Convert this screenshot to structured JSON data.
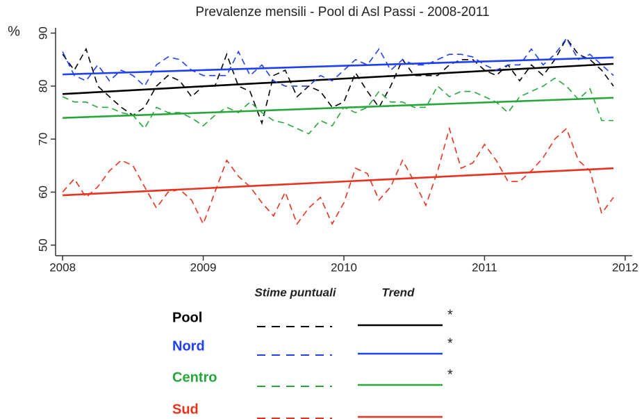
{
  "chart_data": {
    "type": "line",
    "title": "Prevalenze mensili - Pool di Asl Passi - 2008-2011",
    "y_label": "%",
    "legend_headers": [
      "Stime puntuali",
      "Trend"
    ],
    "x": [
      2008,
      2008.083,
      2008.167,
      2008.25,
      2008.333,
      2008.417,
      2008.5,
      2008.583,
      2008.667,
      2008.75,
      2008.833,
      2008.917,
      2009,
      2009.083,
      2009.167,
      2009.25,
      2009.333,
      2009.417,
      2009.5,
      2009.583,
      2009.667,
      2009.75,
      2009.833,
      2009.917,
      2010,
      2010.083,
      2010.167,
      2010.25,
      2010.333,
      2010.417,
      2010.5,
      2010.583,
      2010.667,
      2010.75,
      2010.833,
      2010.917,
      2011,
      2011.083,
      2011.167,
      2011.25,
      2011.333,
      2011.417,
      2011.5,
      2011.583,
      2011.667,
      2011.75,
      2011.833,
      2011.917
    ],
    "trend_x": [
      2008,
      2011.917
    ],
    "series": [
      {
        "name": "Pool",
        "color": "#000000",
        "star": "*",
        "values": [
          86,
          83,
          87,
          80,
          78,
          76,
          74.5,
          76,
          80,
          82,
          81,
          78,
          80,
          80,
          86,
          80,
          79,
          73,
          82,
          83,
          78,
          80,
          79,
          76,
          77,
          82.5,
          79,
          76,
          80,
          85,
          82,
          82,
          82,
          84,
          85,
          85,
          83,
          82,
          84,
          81,
          84,
          82,
          85,
          89,
          86,
          85,
          83,
          80
        ],
        "trend": [
          78.5,
          84.2
        ]
      },
      {
        "name": "Nord",
        "color": "#1f3ff5",
        "star": "*",
        "values": [
          86.5,
          82,
          81,
          84,
          81,
          83,
          82,
          80,
          84,
          85.5,
          85,
          83,
          82,
          82,
          82,
          86.5,
          82,
          84,
          81,
          80,
          80,
          80,
          82,
          81,
          83,
          85,
          84,
          87,
          83,
          85,
          84,
          84,
          85,
          86,
          86,
          85.5,
          84,
          83,
          84,
          84,
          87,
          84,
          86,
          89,
          85,
          86,
          84,
          82
        ],
        "trend": [
          82.2,
          85.4
        ]
      },
      {
        "name": "Centro",
        "color": "#27a63a",
        "star": "*",
        "values": [
          78,
          77,
          77,
          76,
          76,
          75,
          74.5,
          72,
          76,
          75,
          75,
          74,
          72.5,
          74.5,
          76,
          75,
          77,
          75,
          73.5,
          73,
          72,
          71,
          73.5,
          72.5,
          76,
          75,
          76,
          79,
          77,
          77,
          76,
          76,
          80,
          78,
          79,
          79,
          78,
          77,
          75,
          78,
          79,
          80,
          81.5,
          80,
          77.5,
          79.5,
          73.5,
          73.5
        ],
        "trend": [
          74,
          77.8
        ]
      },
      {
        "name": "Sud",
        "color": "#e8321e",
        "values": [
          60,
          62.5,
          59,
          61,
          64,
          66,
          65,
          61,
          57,
          60,
          60.5,
          58.5,
          54,
          60,
          66,
          63,
          61,
          58,
          55.5,
          60,
          54,
          57,
          59,
          54,
          58,
          64.5,
          63.5,
          58.5,
          61,
          66,
          62,
          57.5,
          64,
          72,
          64.5,
          65.5,
          69,
          66,
          62,
          62,
          64,
          66.5,
          70,
          72,
          66,
          64,
          56,
          59
        ],
        "trend": [
          59.4,
          64.5
        ]
      }
    ],
    "xlim": [
      2007.95,
      2012.05
    ],
    "xticks": [
      2008,
      2009,
      2010,
      2011,
      2012
    ],
    "ylim": [
      48,
      91
    ],
    "yticks": [
      50,
      60,
      70,
      80,
      90
    ]
  }
}
